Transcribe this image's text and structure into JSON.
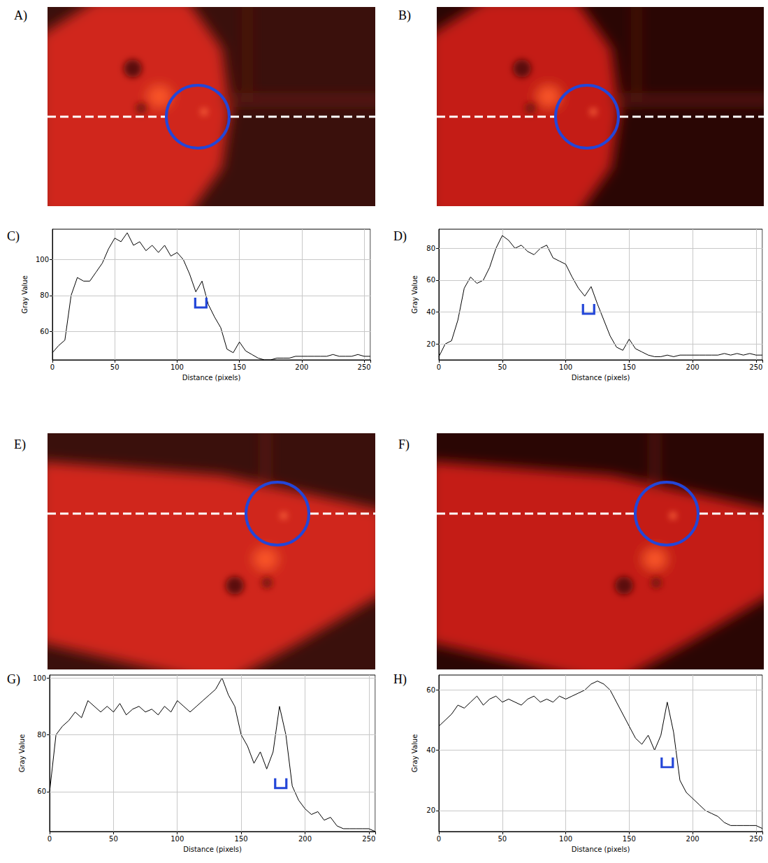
{
  "chart_data": [
    {
      "type": "line",
      "panel": "C)",
      "x_label": "Distance (pixels)",
      "y_label": "Gray Value",
      "x": [
        0,
        5,
        10,
        15,
        20,
        25,
        30,
        35,
        40,
        45,
        50,
        55,
        60,
        65,
        70,
        75,
        80,
        85,
        90,
        95,
        100,
        105,
        110,
        115,
        120,
        125,
        130,
        135,
        140,
        145,
        150,
        155,
        160,
        165,
        170,
        175,
        180,
        185,
        190,
        195,
        200,
        205,
        210,
        215,
        220,
        225,
        230,
        235,
        240,
        245,
        250,
        255
      ],
      "values": [
        48,
        52,
        55,
        80,
        90,
        88,
        88,
        93,
        98,
        106,
        112,
        110,
        115,
        108,
        110,
        105,
        108,
        104,
        108,
        102,
        104,
        100,
        92,
        82,
        88,
        75,
        68,
        62,
        50,
        48,
        54,
        49,
        47,
        45,
        44,
        44,
        45,
        45,
        45,
        46,
        46,
        46,
        46,
        46,
        46,
        47,
        46,
        46,
        46,
        47,
        46,
        46
      ],
      "color": "#000000",
      "xlim": [
        0,
        255
      ],
      "xticks": [
        0,
        50,
        100,
        150,
        200,
        250
      ],
      "ylim": [
        44,
        117
      ],
      "yticks": [
        60,
        80,
        100
      ],
      "grid": true,
      "bracket": [
        119,
        76
      ]
    },
    {
      "type": "line",
      "panel": "D)",
      "x_label": "Distance (pixels)",
      "y_label": "Gray Value",
      "x": [
        0,
        5,
        10,
        15,
        20,
        25,
        30,
        35,
        40,
        45,
        50,
        55,
        60,
        65,
        70,
        75,
        80,
        85,
        90,
        95,
        100,
        105,
        110,
        115,
        120,
        125,
        130,
        135,
        140,
        145,
        150,
        155,
        160,
        165,
        170,
        175,
        180,
        185,
        190,
        195,
        200,
        205,
        210,
        215,
        220,
        225,
        230,
        235,
        240,
        245,
        250,
        255
      ],
      "values": [
        12,
        20,
        22,
        35,
        55,
        62,
        58,
        60,
        68,
        80,
        88,
        85,
        80,
        82,
        78,
        76,
        80,
        82,
        74,
        72,
        70,
        62,
        55,
        50,
        56,
        45,
        35,
        25,
        18,
        16,
        23,
        17,
        15,
        13,
        12,
        12,
        13,
        12,
        13,
        13,
        13,
        13,
        13,
        13,
        13,
        14,
        13,
        14,
        13,
        14,
        13,
        13
      ],
      "color": "#000000",
      "xlim": [
        0,
        255
      ],
      "xticks": [
        0,
        50,
        100,
        150,
        200,
        250
      ],
      "ylim": [
        10,
        92
      ],
      "yticks": [
        20,
        40,
        60,
        80
      ],
      "grid": true,
      "bracket": [
        118,
        42
      ]
    },
    {
      "type": "line",
      "panel": "G)",
      "x_label": "Distance (pixels)",
      "y_label": "Gray Value",
      "x": [
        0,
        5,
        10,
        15,
        20,
        25,
        30,
        35,
        40,
        45,
        50,
        55,
        60,
        65,
        70,
        75,
        80,
        85,
        90,
        95,
        100,
        105,
        110,
        115,
        120,
        125,
        130,
        135,
        140,
        145,
        150,
        155,
        160,
        165,
        170,
        175,
        180,
        185,
        190,
        195,
        200,
        205,
        210,
        215,
        220,
        225,
        230,
        235,
        240,
        245,
        250,
        255
      ],
      "values": [
        60,
        80,
        83,
        85,
        88,
        86,
        92,
        90,
        88,
        90,
        88,
        91,
        87,
        89,
        90,
        88,
        89,
        87,
        90,
        88,
        92,
        90,
        88,
        90,
        92,
        94,
        96,
        100,
        94,
        90,
        80,
        76,
        70,
        74,
        68,
        74,
        90,
        80,
        62,
        57,
        54,
        52,
        53,
        50,
        51,
        48,
        47,
        47,
        47,
        47,
        47,
        46
      ],
      "color": "#000000",
      "xlim": [
        0,
        255
      ],
      "xticks": [
        0,
        50,
        100,
        150,
        200,
        250
      ],
      "ylim": [
        46,
        101
      ],
      "yticks": [
        60,
        80,
        100
      ],
      "grid": true,
      "bracket": [
        181,
        63
      ]
    },
    {
      "type": "line",
      "panel": "H)",
      "x_label": "Distance (pixels)",
      "y_label": "Gray Value",
      "x": [
        0,
        5,
        10,
        15,
        20,
        25,
        30,
        35,
        40,
        45,
        50,
        55,
        60,
        65,
        70,
        75,
        80,
        85,
        90,
        95,
        100,
        105,
        110,
        115,
        120,
        125,
        130,
        135,
        140,
        145,
        150,
        155,
        160,
        165,
        170,
        175,
        180,
        185,
        190,
        195,
        200,
        205,
        210,
        215,
        220,
        225,
        230,
        235,
        240,
        245,
        250,
        255
      ],
      "values": [
        48,
        50,
        52,
        55,
        54,
        56,
        58,
        55,
        57,
        58,
        56,
        57,
        56,
        55,
        57,
        58,
        56,
        57,
        56,
        58,
        57,
        58,
        59,
        60,
        62,
        63,
        62,
        60,
        56,
        52,
        48,
        44,
        42,
        45,
        40,
        45,
        56,
        46,
        30,
        26,
        24,
        22,
        20,
        19,
        18,
        16,
        15,
        15,
        15,
        15,
        15,
        14
      ],
      "color": "#000000",
      "xlim": [
        0,
        255
      ],
      "xticks": [
        0,
        50,
        100,
        150,
        200,
        250
      ],
      "ylim": [
        13,
        65
      ],
      "yticks": [
        20,
        40,
        60
      ],
      "grid": true,
      "bracket": [
        180,
        36
      ]
    }
  ],
  "images": [
    {
      "panel": "A)"
    },
    {
      "panel": "B)"
    },
    {
      "panel": "E)"
    },
    {
      "panel": "F)"
    }
  ]
}
